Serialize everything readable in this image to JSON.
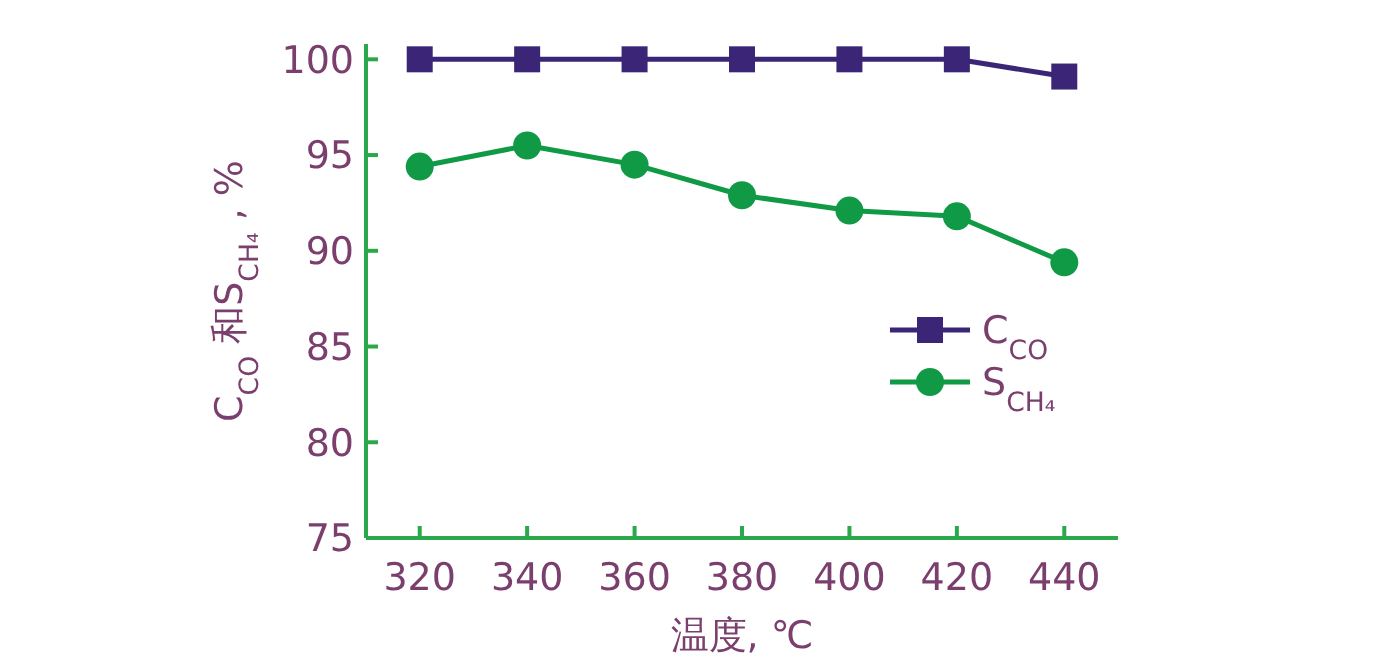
{
  "chart_data": {
    "type": "line",
    "xlabel": "温度, ℃",
    "ylabel": "C$_{CO}$和S$_{CH₄}$, %",
    "x": [
      320,
      340,
      360,
      380,
      400,
      420,
      440
    ],
    "series": [
      {
        "name": "C$_{CO}$",
        "color": "#3b2577",
        "marker": "square",
        "values": [
          100,
          100,
          100,
          100,
          100,
          100,
          99.1
        ]
      },
      {
        "name": "S$_{CH₄}$",
        "color": "#119a45",
        "marker": "circle",
        "values": [
          94.4,
          95.5,
          94.5,
          92.9,
          92.1,
          91.8,
          89.4
        ]
      }
    ],
    "xlim": [
      310,
      450
    ],
    "ylim": [
      75,
      100.8
    ],
    "xticks": [
      320,
      340,
      360,
      380,
      400,
      420,
      440
    ],
    "yticks": [
      75,
      80,
      85,
      90,
      95,
      100
    ],
    "grid": false,
    "legend": "right"
  }
}
